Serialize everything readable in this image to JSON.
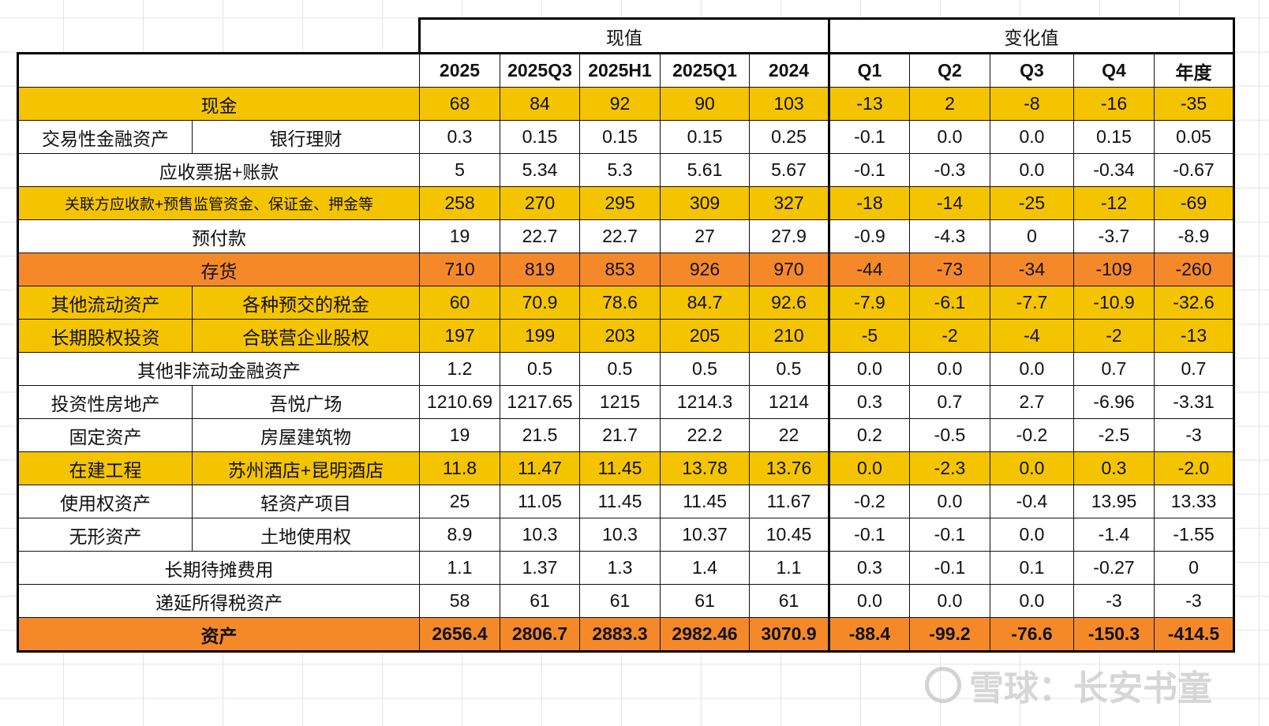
{
  "colors": {
    "yellow": "#F5C400",
    "orange": "#F5892A",
    "white": "#FFFFFF"
  },
  "group_headers": {
    "current": "现值",
    "change": "变化值"
  },
  "columns": [
    "2025",
    "2025Q3",
    "2025H1",
    "2025Q1",
    "2024",
    "Q1",
    "Q2",
    "Q3",
    "Q4",
    "年度"
  ],
  "rows": [
    {
      "label": "现金",
      "sub": null,
      "values": [
        "68",
        "84",
        "92",
        "90",
        "103"
      ],
      "changes": [
        "-13",
        "2",
        "-8",
        "-16",
        "-35"
      ],
      "fill": "yellow"
    },
    {
      "label": "交易性金融资产",
      "sub": "银行理财",
      "values": [
        "0.3",
        "0.15",
        "0.15",
        "0.15",
        "0.25"
      ],
      "changes": [
        "-0.1",
        "0.0",
        "0.0",
        "0.15",
        "0.05"
      ],
      "fill": "white"
    },
    {
      "label": "应收票据+账款",
      "sub": null,
      "values": [
        "5",
        "5.34",
        "5.3",
        "5.61",
        "5.67"
      ],
      "changes": [
        "-0.1",
        "-0.3",
        "0.0",
        "-0.34",
        "-0.67"
      ],
      "fill": "white"
    },
    {
      "label": "关联方应收款+预售监管资金、保证金、押金等",
      "sub": null,
      "values": [
        "258",
        "270",
        "295",
        "309",
        "327"
      ],
      "changes": [
        "-18",
        "-14",
        "-25",
        "-12",
        "-69"
      ],
      "fill": "yellow",
      "small": true
    },
    {
      "label": "预付款",
      "sub": null,
      "values": [
        "19",
        "22.7",
        "22.7",
        "27",
        "27.9"
      ],
      "changes": [
        "-0.9",
        "-4.3",
        "0",
        "-3.7",
        "-8.9"
      ],
      "fill": "white"
    },
    {
      "label": "存货",
      "sub": null,
      "values": [
        "710",
        "819",
        "853",
        "926",
        "970"
      ],
      "changes": [
        "-44",
        "-73",
        "-34",
        "-109",
        "-260"
      ],
      "fill": "orange"
    },
    {
      "label": "其他流动资产",
      "sub": "各种预交的税金",
      "values": [
        "60",
        "70.9",
        "78.6",
        "84.7",
        "92.6"
      ],
      "changes": [
        "-7.9",
        "-6.1",
        "-7.7",
        "-10.9",
        "-32.6"
      ],
      "fill": "yellow"
    },
    {
      "label": "长期股权投资",
      "sub": "合联营企业股权",
      "values": [
        "197",
        "199",
        "203",
        "205",
        "210"
      ],
      "changes": [
        "-5",
        "-2",
        "-4",
        "-2",
        "-13"
      ],
      "fill": "yellow"
    },
    {
      "label": "其他非流动金融资产",
      "sub": null,
      "values": [
        "1.2",
        "0.5",
        "0.5",
        "0.5",
        "0.5"
      ],
      "changes": [
        "0.0",
        "0.0",
        "0.0",
        "0.7",
        "0.7"
      ],
      "fill": "white"
    },
    {
      "label": "投资性房地产",
      "sub": "吾悦广场",
      "values": [
        "1210.69",
        "1217.65",
        "1215",
        "1214.3",
        "1214"
      ],
      "changes": [
        "0.3",
        "0.7",
        "2.7",
        "-6.96",
        "-3.31"
      ],
      "fill": "white"
    },
    {
      "label": "固定资产",
      "sub": "房屋建筑物",
      "values": [
        "19",
        "21.5",
        "21.7",
        "22.2",
        "22"
      ],
      "changes": [
        "0.2",
        "-0.5",
        "-0.2",
        "-2.5",
        "-3"
      ],
      "fill": "white"
    },
    {
      "label": "在建工程",
      "sub": "苏州酒店+昆明酒店",
      "values": [
        "11.8",
        "11.47",
        "11.45",
        "13.78",
        "13.76"
      ],
      "changes": [
        "0.0",
        "-2.3",
        "0.0",
        "0.3",
        "-2.0"
      ],
      "fill": "yellow"
    },
    {
      "label": "使用权资产",
      "sub": "轻资产项目",
      "values": [
        "25",
        "11.05",
        "11.45",
        "11.45",
        "11.67"
      ],
      "changes": [
        "-0.2",
        "0.0",
        "-0.4",
        "13.95",
        "13.33"
      ],
      "fill": "white"
    },
    {
      "label": "无形资产",
      "sub": "土地使用权",
      "values": [
        "8.9",
        "10.3",
        "10.3",
        "10.37",
        "10.45"
      ],
      "changes": [
        "-0.1",
        "-0.1",
        "0.0",
        "-1.4",
        "-1.55"
      ],
      "fill": "white"
    },
    {
      "label": "长期待摊费用",
      "sub": null,
      "values": [
        "1.1",
        "1.37",
        "1.3",
        "1.4",
        "1.1"
      ],
      "changes": [
        "0.3",
        "-0.1",
        "0.1",
        "-0.27",
        "0"
      ],
      "fill": "white"
    },
    {
      "label": "递延所得税资产",
      "sub": null,
      "values": [
        "58",
        "61",
        "61",
        "61",
        "61"
      ],
      "changes": [
        "0.0",
        "0.0",
        "0.0",
        "-3",
        "-3"
      ],
      "fill": "white"
    },
    {
      "label": "资产",
      "sub": null,
      "values": [
        "2656.4",
        "2806.7",
        "2883.3",
        "2982.46",
        "3070.9"
      ],
      "changes": [
        "-88.4",
        "-99.2",
        "-76.6",
        "-150.3",
        "-414.5"
      ],
      "fill": "orange",
      "total": true
    }
  ],
  "watermark": {
    "text": "雪球：长安书童",
    "logo": "snowball-logo-icon"
  }
}
